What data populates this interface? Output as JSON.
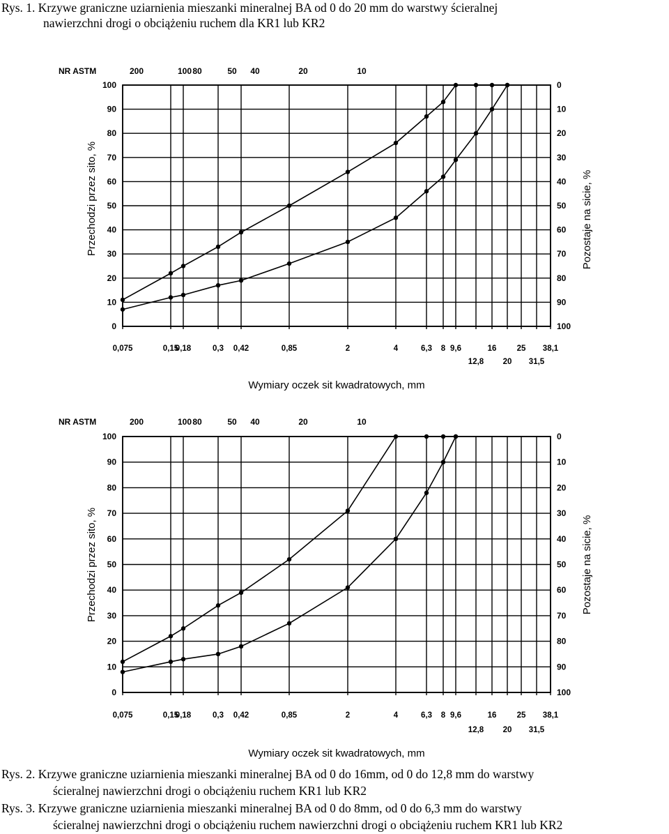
{
  "captions": {
    "fig1_line1": "Rys. 1. Krzywe graniczne uziarnienia mieszanki mineralnej BA od 0 do 20 mm do warstwy ścieralnej",
    "fig1_line2": "nawierzchni drogi o obciążeniu ruchem dla KR1 lub KR2",
    "fig2_line1": "Rys. 2. Krzywe graniczne uziarnienia mieszanki mineralnej BA od 0 do 16mm, od 0 do 12,8 mm  do warstwy",
    "fig2_line2": "ścieralnej nawierzchni drogi o obciążeniu ruchem  KR1 lub KR2",
    "fig3_line1": "Rys. 3.  Krzywe graniczne uziarnienia mieszanki mineralnej BA od 0 do 8mm, od 0 do        6,3 mm do warstwy",
    "fig3_line2": "ścieralnej nawierzchni drogi o obciążeniu ruchem nawierzchni drogi o obciążeniu ruchem KR1 lub KR2"
  },
  "colors": {
    "ink": "#000000",
    "background": "#ffffff"
  },
  "chart_data": [
    {
      "type": "line",
      "title": "",
      "astm_label": "NR ASTM",
      "astm_ticks": [
        {
          "label": "200",
          "x": 0.075
        },
        {
          "label": "100",
          "x": 0.15
        },
        {
          "label": "80",
          "x": 0.18
        },
        {
          "label": "50",
          "x": 0.3
        },
        {
          "label": "40",
          "x": 0.42
        },
        {
          "label": "20",
          "x": 0.85
        },
        {
          "label": "10",
          "x": 2
        }
      ],
      "xlabel": "Wymiary oczek sit kwadratowych, mm",
      "ylabel": "Przechodzi przez sito, %",
      "y2label": "Pozostaje na sicie, %",
      "ylim": [
        0,
        100
      ],
      "xscale": "sieve",
      "x_ticks_row1": [
        "0,075",
        "0,15",
        "0,18",
        "0,3",
        "0,42",
        "0,85",
        "2",
        "4",
        "6,3",
        "8",
        "9,6",
        "16",
        "25",
        "38,1"
      ],
      "x_ticks_row2": [
        "12,8",
        "20",
        "31,5"
      ],
      "y_ticks": [
        "0",
        "10",
        "20",
        "30",
        "40",
        "50",
        "60",
        "70",
        "80",
        "90",
        "100"
      ],
      "y2_ticks": [
        "100",
        "90",
        "80",
        "70",
        "60",
        "50",
        "40",
        "30",
        "20",
        "10",
        "0"
      ],
      "series": [
        {
          "name": "upper limit",
          "x": [
            0.075,
            0.15,
            0.18,
            0.3,
            0.42,
            0.85,
            2,
            4,
            6.3,
            8,
            9.6,
            12.8,
            16,
            20
          ],
          "y": [
            11,
            22,
            25,
            33,
            39,
            50,
            64,
            76,
            87,
            93,
            100,
            100,
            100,
            100
          ]
        },
        {
          "name": "lower limit",
          "x": [
            0.075,
            0.15,
            0.18,
            0.3,
            0.42,
            0.85,
            2,
            4,
            6.3,
            8,
            9.6,
            12.8,
            16,
            20
          ],
          "y": [
            7,
            12,
            13,
            17,
            19,
            26,
            35,
            45,
            56,
            62,
            69,
            80,
            90,
            100
          ]
        }
      ]
    },
    {
      "type": "line",
      "title": "",
      "astm_label": "NR ASTM",
      "astm_ticks": [
        {
          "label": "200",
          "x": 0.075
        },
        {
          "label": "100",
          "x": 0.15
        },
        {
          "label": "80",
          "x": 0.18
        },
        {
          "label": "50",
          "x": 0.3
        },
        {
          "label": "40",
          "x": 0.42
        },
        {
          "label": "20",
          "x": 0.85
        },
        {
          "label": "10",
          "x": 2
        }
      ],
      "xlabel": "Wymiary oczek sit kwadratowych, mm",
      "ylabel": "Przechodzi przez sito, %",
      "y2label": "Pozostaje na sicie, %",
      "ylim": [
        0,
        100
      ],
      "xscale": "sieve",
      "x_ticks_row1": [
        "0,075",
        "0,15",
        "0,18",
        "0,3",
        "0,42",
        "0,85",
        "2",
        "4",
        "6,3",
        "8",
        "9,6",
        "16",
        "25",
        "38,1"
      ],
      "x_ticks_row2": [
        "12,8",
        "20",
        "31,5"
      ],
      "y_ticks": [
        "0",
        "10",
        "20",
        "30",
        "40",
        "50",
        "60",
        "70",
        "80",
        "90",
        "100"
      ],
      "y2_ticks": [
        "100",
        "90",
        "80",
        "70",
        "60",
        "50",
        "40",
        "30",
        "20",
        "10",
        "0"
      ],
      "series": [
        {
          "name": "upper limit",
          "x": [
            0.075,
            0.15,
            0.18,
            0.3,
            0.42,
            0.85,
            2,
            4,
            6.3,
            8,
            9.6
          ],
          "y": [
            12,
            22,
            25,
            34,
            39,
            52,
            71,
            100,
            100,
            100,
            100
          ]
        },
        {
          "name": "lower limit",
          "x": [
            0.075,
            0.15,
            0.18,
            0.3,
            0.42,
            0.85,
            2,
            4,
            6.3,
            8,
            9.6
          ],
          "y": [
            8,
            12,
            13,
            15,
            18,
            27,
            41,
            60,
            78,
            90,
            100
          ]
        }
      ]
    }
  ]
}
